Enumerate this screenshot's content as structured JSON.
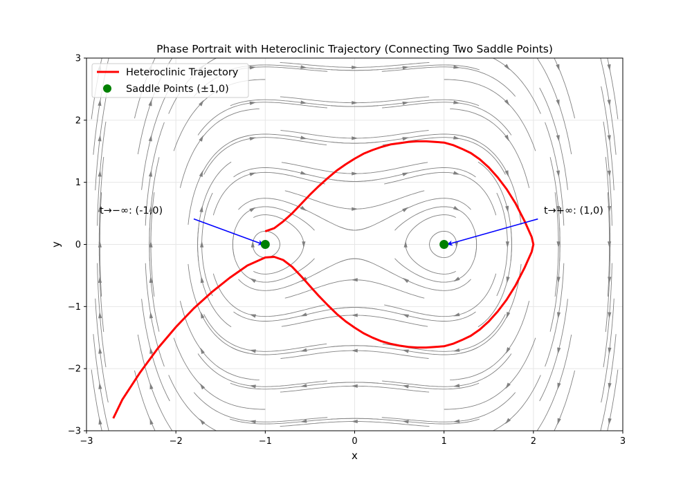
{
  "chart_data": {
    "type": "line",
    "title": "Phase Portrait with Heteroclinic Trajectory (Connecting Two Saddle Points)",
    "xlabel": "x",
    "ylabel": "y",
    "xlim": [
      -3,
      3
    ],
    "ylim": [
      -3,
      3
    ],
    "xticks": [
      -3,
      -2,
      -1,
      0,
      1,
      2,
      3
    ],
    "yticks": [
      -3,
      -2,
      -1,
      0,
      1,
      2,
      3
    ],
    "xtick_labels": [
      "−3",
      "−2",
      "−1",
      "0",
      "1",
      "2",
      "3"
    ],
    "ytick_labels": [
      "−3",
      "−2",
      "−1",
      "0",
      "1",
      "2",
      "3"
    ],
    "grid": true,
    "legend_position": "top-left",
    "background_field": "streamlines of x' = y, y' = x - x^3 (gray)",
    "series": [
      {
        "name": "Heteroclinic Trajectory",
        "kind": "line",
        "color": "#ff0000",
        "x": [
          -1.0,
          -0.9,
          -0.8,
          -0.7,
          -0.6,
          -0.5,
          -0.4,
          -0.3,
          -0.2,
          -0.1,
          0.0,
          0.1,
          0.2,
          0.3,
          0.4,
          0.5,
          0.6,
          0.7,
          0.8,
          0.9,
          1.0,
          1.1,
          1.2,
          1.3,
          1.4,
          1.5,
          1.6,
          1.7,
          1.8,
          1.9,
          1.98,
          2.0,
          1.98,
          1.9,
          1.8,
          1.7,
          1.6,
          1.5,
          1.4,
          1.3,
          1.2,
          1.1,
          1.0,
          0.9,
          0.8,
          0.7,
          0.6,
          0.5,
          0.4,
          0.3,
          0.2,
          0.1,
          0.0,
          -0.1,
          -0.2,
          -0.3,
          -0.4,
          -0.5,
          -0.6,
          -0.7,
          -0.8,
          -0.9,
          -1.0,
          -1.2,
          -1.4,
          -1.6,
          -1.8,
          -2.0,
          -2.2,
          -2.4,
          -2.6,
          -2.7
        ],
        "y": [
          0.21,
          0.26,
          0.37,
          0.5,
          0.65,
          0.8,
          0.94,
          1.07,
          1.19,
          1.29,
          1.38,
          1.46,
          1.52,
          1.57,
          1.61,
          1.63,
          1.65,
          1.66,
          1.66,
          1.65,
          1.64,
          1.6,
          1.54,
          1.47,
          1.37,
          1.24,
          1.08,
          0.89,
          0.66,
          0.38,
          0.12,
          0.0,
          -0.12,
          -0.38,
          -0.66,
          -0.89,
          -1.08,
          -1.24,
          -1.37,
          -1.47,
          -1.54,
          -1.6,
          -1.64,
          -1.65,
          -1.66,
          -1.66,
          -1.65,
          -1.63,
          -1.6,
          -1.56,
          -1.5,
          -1.43,
          -1.34,
          -1.24,
          -1.12,
          -0.98,
          -0.83,
          -0.67,
          -0.51,
          -0.36,
          -0.25,
          -0.2,
          -0.21,
          -0.34,
          -0.54,
          -0.77,
          -1.03,
          -1.33,
          -1.67,
          -2.06,
          -2.5,
          -2.8
        ]
      },
      {
        "name": "Saddle Points (±1,0)",
        "kind": "scatter",
        "color": "#008000",
        "x": [
          -1,
          1
        ],
        "y": [
          0,
          0
        ]
      }
    ],
    "annotations": [
      {
        "text": "t→−∞: (-1,0)",
        "text_x": -2.5,
        "text_y": 0.55,
        "arrow_tail_x": -1.8,
        "arrow_tail_y": 0.41,
        "arrow_head_x": -1.0,
        "arrow_head_y": 0.0,
        "color": "#0000ff"
      },
      {
        "text": "t→+∞: (1,0)",
        "text_x": 2.45,
        "text_y": 0.55,
        "arrow_tail_x": 2.05,
        "arrow_tail_y": 0.41,
        "arrow_head_x": 1.0,
        "arrow_head_y": 0.0,
        "color": "#0000ff"
      }
    ],
    "colors": {
      "trajectory": "#ff0000",
      "saddle": "#008000",
      "streamline": "#808080",
      "arrow": "#0000ff",
      "grid": "#e6e6e6"
    }
  }
}
